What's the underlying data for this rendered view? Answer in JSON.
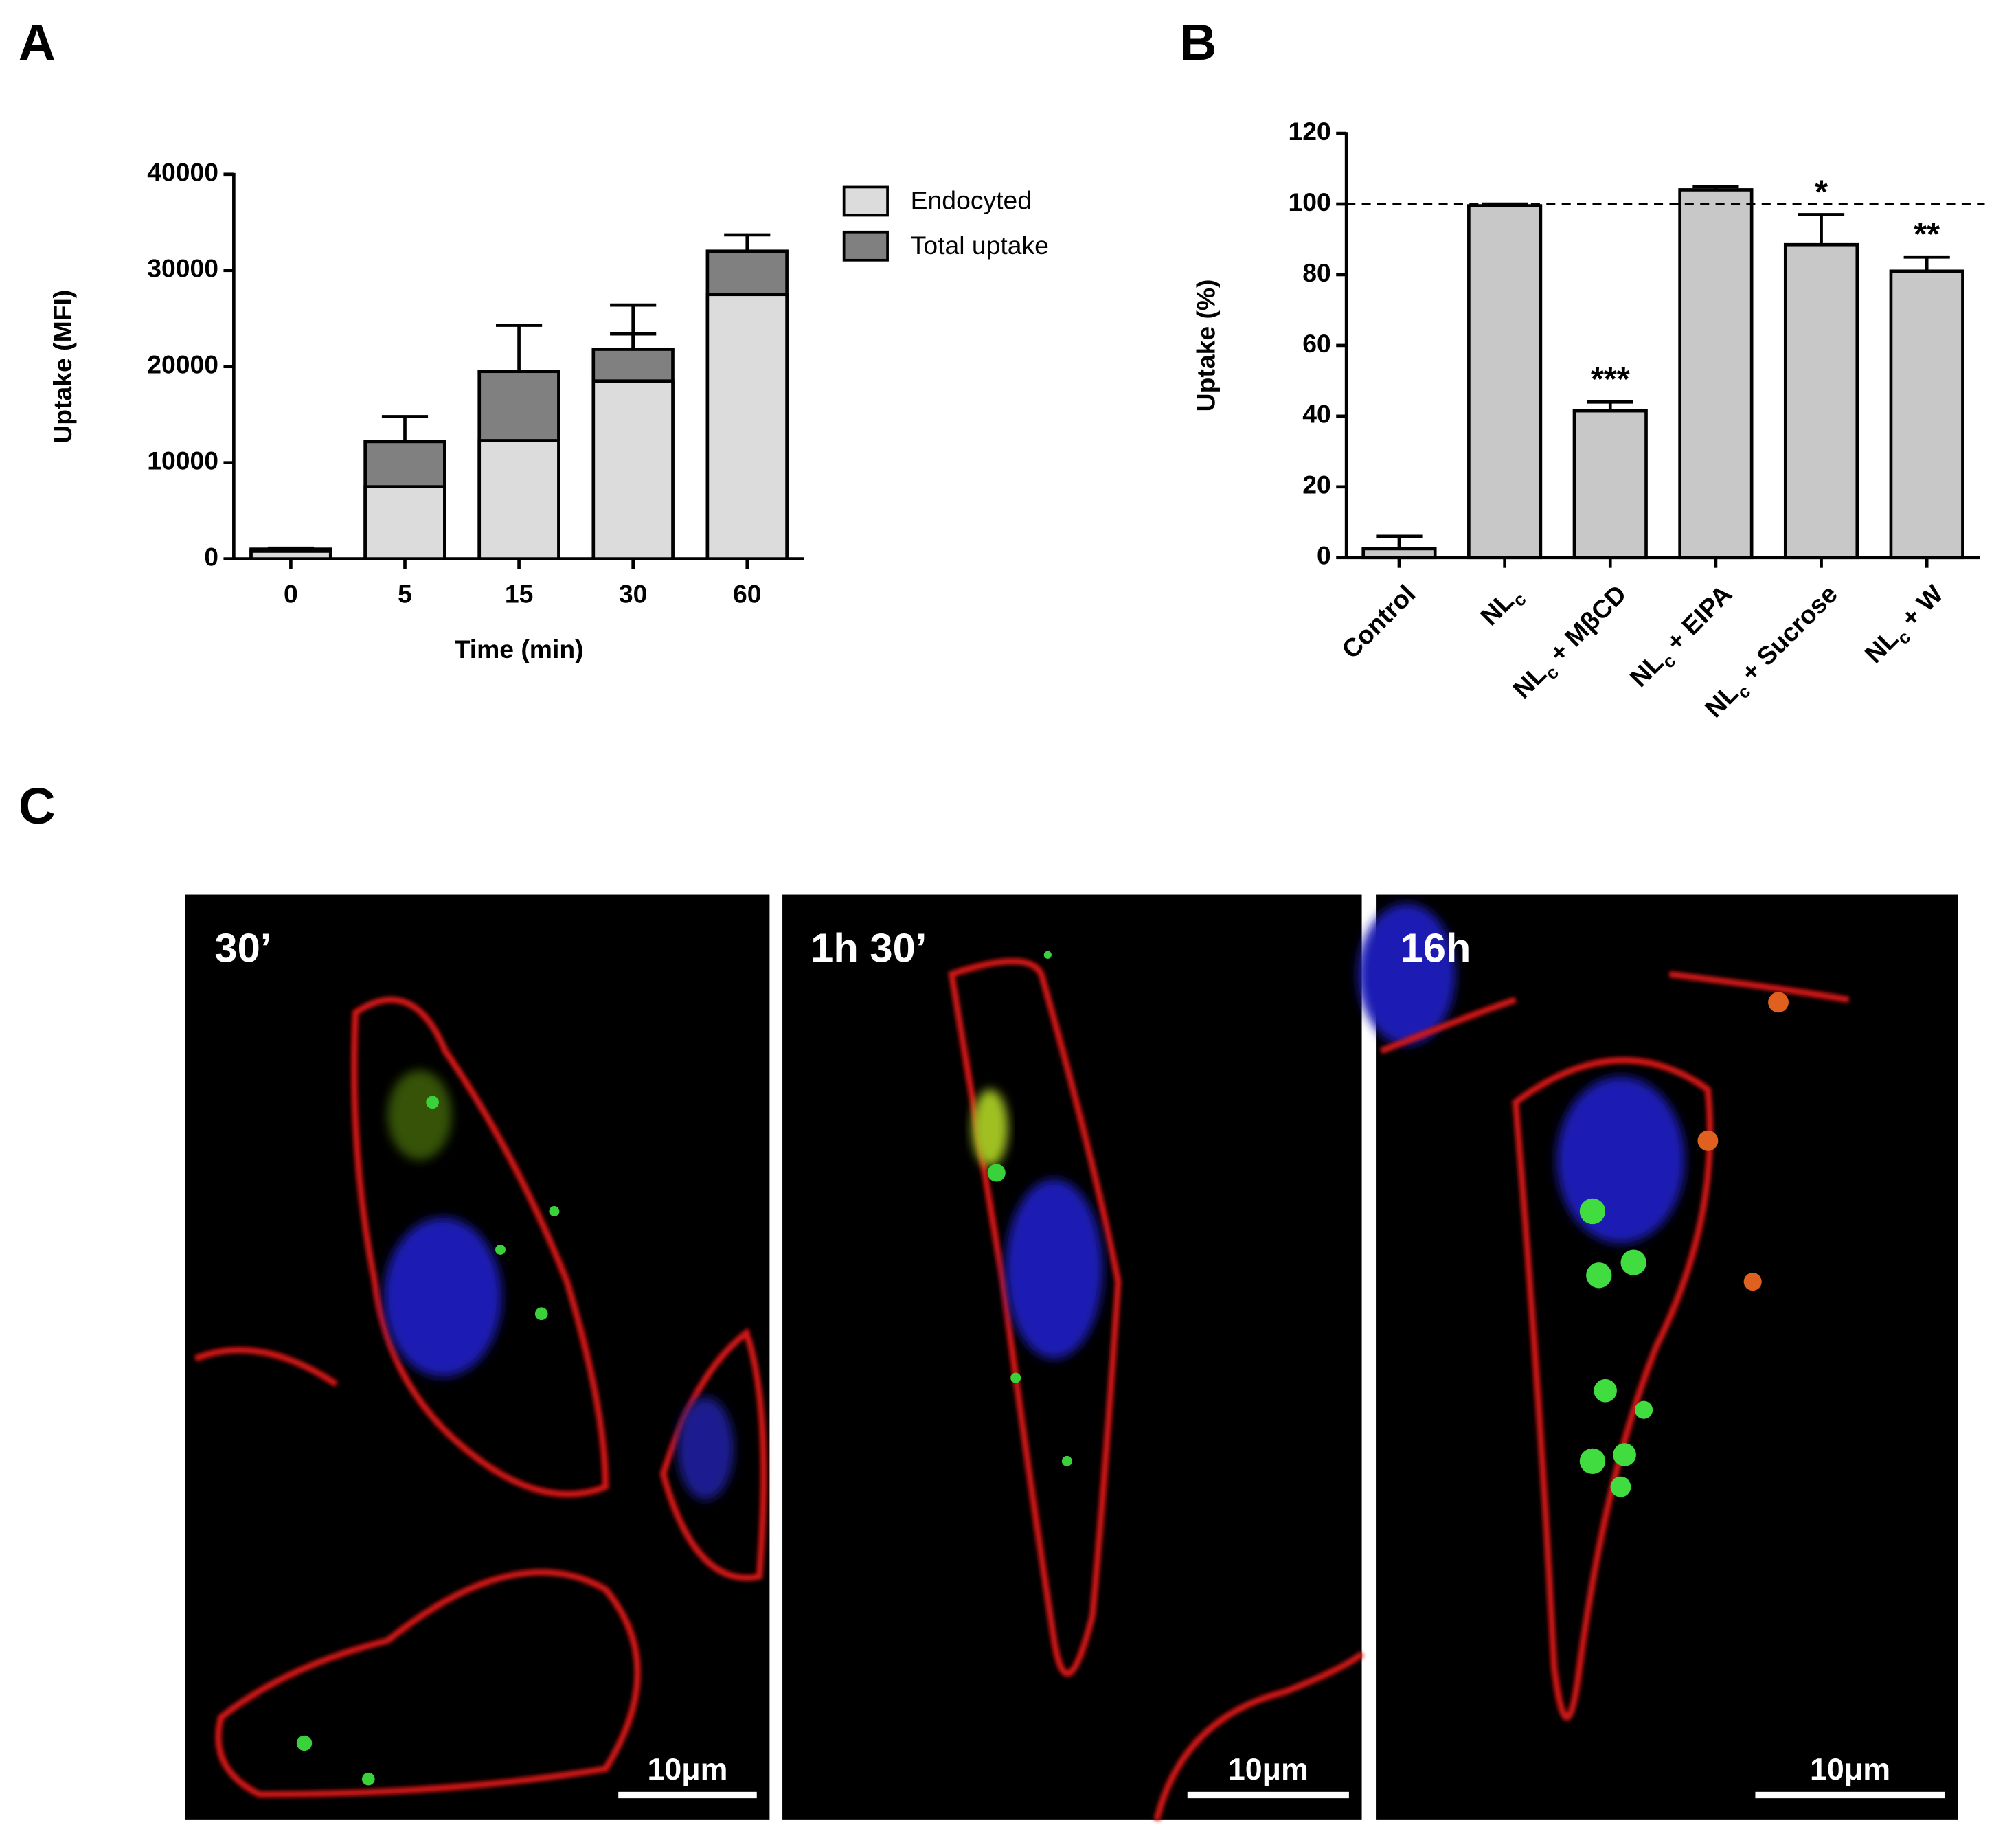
{
  "chart_data": [
    {
      "type": "bar",
      "panel_label": "A",
      "ylabel": "Uptake (MFI)",
      "xlabel": "Time (min)",
      "categories": [
        "0",
        "5",
        "15",
        "30",
        "60"
      ],
      "series": [
        {
          "name": "Endocyted",
          "color": "#dcdcdc",
          "values": [
            800,
            7500,
            12300,
            18500,
            27500
          ],
          "errors": [
            100,
            1300,
            1600,
            4900,
            800
          ]
        },
        {
          "name": "Total uptake",
          "color": "#808080",
          "values": [
            1000,
            12200,
            19500,
            21800,
            32000
          ],
          "errors": [
            100,
            2600,
            4800,
            4600,
            1700
          ]
        }
      ],
      "ylim": [
        0,
        40000
      ],
      "yticks": [
        0,
        10000,
        20000,
        30000,
        40000
      ],
      "legend": "right"
    },
    {
      "type": "bar",
      "panel_label": "B",
      "ylabel": "Uptake (%)",
      "categories": [
        {
          "base": "Control"
        },
        {
          "base": "NL",
          "sub": "c"
        },
        {
          "base": "NL",
          "sub": "c",
          "rest": " + MβCD"
        },
        {
          "base": "NL",
          "sub": "c",
          "rest": " + EIPA"
        },
        {
          "base": "NL",
          "sub": "c",
          "rest": " + Sucrose"
        },
        {
          "base": "NL",
          "sub": "c",
          "rest": " + W"
        }
      ],
      "values": [
        2.5,
        99.5,
        41.5,
        104,
        88.5,
        81
      ],
      "errors": [
        3.5,
        0.5,
        2.5,
        1,
        8.5,
        4
      ],
      "annotations": [
        null,
        null,
        "***",
        null,
        "*",
        "**"
      ],
      "color": "#c8c8c8",
      "reference_line": 100,
      "ylim": [
        0,
        120
      ],
      "yticks": [
        0,
        20,
        40,
        60,
        80,
        100,
        120
      ]
    }
  ],
  "microscopy": {
    "panel_label": "C",
    "images": [
      {
        "time": "30’",
        "scale_bar": "10μm"
      },
      {
        "time": "1h 30’",
        "scale_bar": "10μm"
      },
      {
        "time": "16h",
        "scale_bar": "10μm"
      }
    ]
  }
}
